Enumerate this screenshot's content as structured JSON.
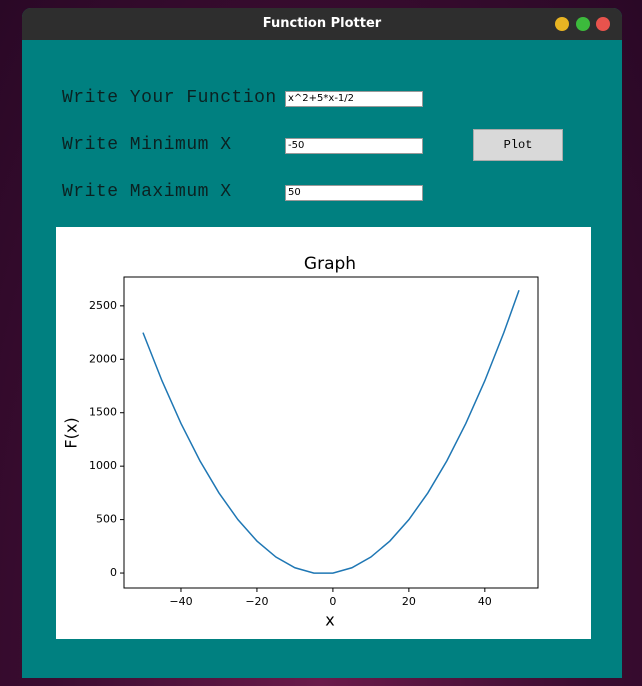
{
  "window": {
    "title": "Function Plotter"
  },
  "form": {
    "fields": [
      {
        "label": "Write Your Function",
        "value": "x^2+5*x-1/2"
      },
      {
        "label": "Write Minimum X",
        "value": "-50"
      },
      {
        "label": "Write Maximum X",
        "value": "50"
      }
    ],
    "button": "Plot"
  },
  "chart_data": {
    "type": "line",
    "title": "Graph",
    "x_label": "x",
    "y_label": "F(x)",
    "x": [
      -50,
      -45,
      -40,
      -35,
      -30,
      -25,
      -20,
      -15,
      -10,
      -5,
      0,
      5,
      10,
      15,
      20,
      25,
      30,
      35,
      40,
      45,
      49
    ],
    "values": [
      2249.5,
      1799.5,
      1399.5,
      1049.5,
      749.5,
      499.5,
      299.5,
      149.5,
      49.5,
      -0.5,
      -0.5,
      49.5,
      149.5,
      299.5,
      499.5,
      749.5,
      1049.5,
      1399.5,
      1799.5,
      2249.5,
      2645.5
    ],
    "color": "#1f77b4",
    "xlim": [
      -55,
      54
    ],
    "ylim": [
      -140,
      2770
    ],
    "xticks": [
      {
        "value": -40,
        "label": "−40"
      },
      {
        "value": -20,
        "label": "−20"
      },
      0,
      20,
      40
    ],
    "yticks": [
      0,
      500,
      1000,
      1500,
      2000,
      2500
    ],
    "grid": false
  }
}
